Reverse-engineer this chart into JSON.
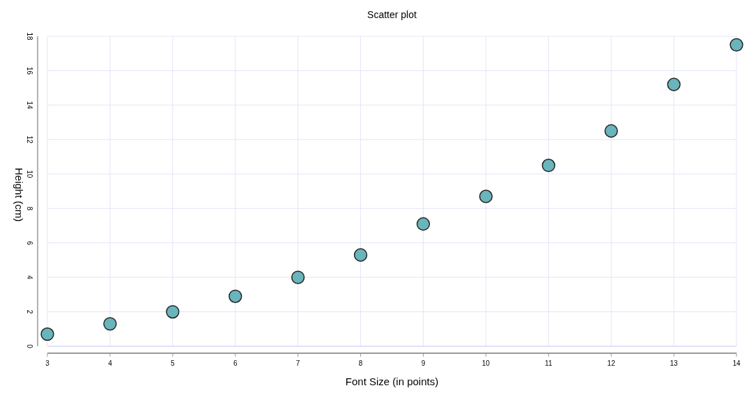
{
  "chart_data": {
    "type": "scatter",
    "title": "Scatter plot",
    "xlabel": "Font Size (in points)",
    "ylabel": "Height (cm)",
    "x": [
      3,
      4,
      5,
      6,
      7,
      8,
      9,
      10,
      11,
      12,
      13,
      14
    ],
    "series": [
      {
        "color": "#6ab4bc",
        "values": [
          0.7,
          1.3,
          2.0,
          2.9,
          4.0,
          5.3,
          7.1,
          8.7,
          10.5,
          12.5,
          15.2,
          17.5
        ]
      }
    ],
    "xlim": [
      3,
      14
    ],
    "xticks": [
      3,
      4,
      5,
      6,
      7,
      8,
      9,
      10,
      11,
      12,
      13,
      14
    ],
    "ylim": [
      0,
      18
    ],
    "yticks": [
      0,
      2,
      4,
      6,
      8,
      10,
      12,
      14,
      16,
      18
    ],
    "grid": true,
    "marker": "circle"
  }
}
